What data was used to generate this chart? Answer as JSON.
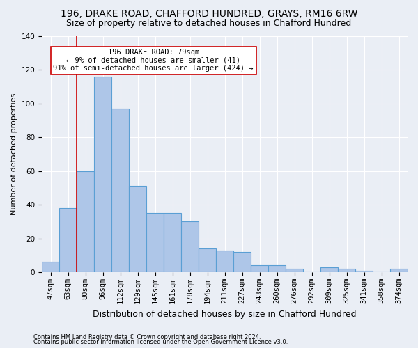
{
  "title1": "196, DRAKE ROAD, CHAFFORD HUNDRED, GRAYS, RM16 6RW",
  "title2": "Size of property relative to detached houses in Chafford Hundred",
  "xlabel": "Distribution of detached houses by size in Chafford Hundred",
  "ylabel": "Number of detached properties",
  "footer1": "Contains HM Land Registry data © Crown copyright and database right 2024.",
  "footer2": "Contains public sector information licensed under the Open Government Licence v3.0.",
  "categories": [
    "47sqm",
    "63sqm",
    "80sqm",
    "96sqm",
    "112sqm",
    "129sqm",
    "145sqm",
    "161sqm",
    "178sqm",
    "194sqm",
    "211sqm",
    "227sqm",
    "243sqm",
    "260sqm",
    "276sqm",
    "292sqm",
    "309sqm",
    "325sqm",
    "341sqm",
    "358sqm",
    "374sqm"
  ],
  "values": [
    6,
    38,
    60,
    116,
    97,
    51,
    35,
    35,
    30,
    14,
    13,
    12,
    4,
    4,
    2,
    0,
    3,
    2,
    1,
    0,
    2
  ],
  "bar_color": "#aec6e8",
  "bar_edge_color": "#5a9fd4",
  "highlight_line_color": "#cc0000",
  "annotation_line1": "196 DRAKE ROAD: 79sqm",
  "annotation_line2": "← 9% of detached houses are smaller (41)",
  "annotation_line3": "91% of semi-detached houses are larger (424) →",
  "annotation_box_color": "#cc0000",
  "ylim": [
    0,
    140
  ],
  "yticks": [
    0,
    20,
    40,
    60,
    80,
    100,
    120,
    140
  ],
  "background_color": "#eaeef5",
  "grid_color": "#ffffff",
  "fig_facecolor": "#eaeef5",
  "title1_fontsize": 10,
  "title2_fontsize": 9,
  "xlabel_fontsize": 9,
  "ylabel_fontsize": 8,
  "tick_fontsize": 7.5,
  "annotation_fontsize": 7.5,
  "footer_fontsize": 6,
  "line_x_index": 1.5
}
